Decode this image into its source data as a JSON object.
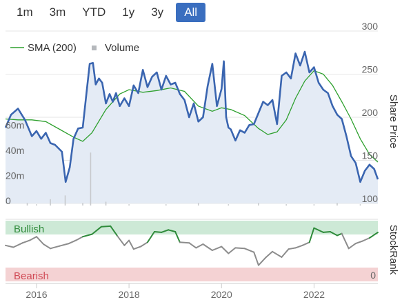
{
  "range_buttons": [
    {
      "label": "1m",
      "active": false
    },
    {
      "label": "3m",
      "active": false
    },
    {
      "label": "YTD",
      "active": false
    },
    {
      "label": "1y",
      "active": false
    },
    {
      "label": "3y",
      "active": false
    },
    {
      "label": "All",
      "active": true
    }
  ],
  "colors": {
    "price_line": "#3a65b0",
    "sma_line": "#2ea02e",
    "price_area": "#e4ebf5",
    "volume_bar": "#c7c9cc",
    "bullish_band": "#cde9d6",
    "bearish_band": "#f4d2d3",
    "stockrank_above": "#2e8b3a",
    "stockrank_below": "#8c8c8c",
    "accent_button": "#3a6ebf"
  },
  "chart_data": {
    "type": "line",
    "legend": {
      "position": "top-left",
      "items": [
        {
          "label": "SMA (200)",
          "marker": "line",
          "color": "#2ea02e"
        },
        {
          "label": "Volume",
          "marker": "square",
          "color": "#b5b8bc"
        }
      ]
    },
    "x_axis": {
      "range": [
        2015.33,
        2023.38
      ],
      "ticks": [
        {
          "value": 2016.0,
          "label": "2016"
        },
        {
          "value": 2018.0,
          "label": "2018"
        },
        {
          "value": 2020.0,
          "label": "2020"
        },
        {
          "value": 2022.0,
          "label": "2022"
        }
      ]
    },
    "price_axis": {
      "title": "Share Price",
      "range": [
        100,
        300
      ],
      "ticks": [
        100,
        150,
        200,
        250,
        300
      ]
    },
    "volume_axis": {
      "range": [
        0,
        70
      ],
      "ticks": [
        {
          "value": 0,
          "label": "0"
        },
        {
          "value": 20,
          "label": "20m"
        },
        {
          "value": 40,
          "label": "40m"
        },
        {
          "value": 60,
          "label": "60m"
        }
      ]
    },
    "stockrank_axis": {
      "title": "StockRank",
      "range": [
        0,
        100
      ],
      "ticks": [
        {
          "value": 0,
          "label": "0"
        }
      ],
      "bullish_label": "Bullish",
      "bearish_label": "Bearish",
      "bullish_threshold": 70,
      "bearish_threshold": 30
    },
    "series": [
      {
        "name": "Share Price",
        "x": [
          2015.33,
          2015.45,
          2015.6,
          2015.75,
          2015.9,
          2016.0,
          2016.1,
          2016.2,
          2016.3,
          2016.4,
          2016.55,
          2016.63,
          2016.72,
          2016.8,
          2016.9,
          2017.0,
          2017.08,
          2017.15,
          2017.22,
          2017.28,
          2017.35,
          2017.42,
          2017.5,
          2017.58,
          2017.65,
          2017.72,
          2017.8,
          2017.9,
          2018.0,
          2018.1,
          2018.2,
          2018.3,
          2018.4,
          2018.5,
          2018.6,
          2018.7,
          2018.8,
          2018.9,
          2019.0,
          2019.1,
          2019.2,
          2019.3,
          2019.4,
          2019.5,
          2019.6,
          2019.7,
          2019.8,
          2019.9,
          2020.0,
          2020.05,
          2020.1,
          2020.15,
          2020.2,
          2020.3,
          2020.4,
          2020.5,
          2020.6,
          2020.7,
          2020.8,
          2020.9,
          2021.0,
          2021.1,
          2021.2,
          2021.3,
          2021.4,
          2021.5,
          2021.6,
          2021.7,
          2021.8,
          2021.9,
          2022.0,
          2022.1,
          2022.2,
          2022.3,
          2022.4,
          2022.5,
          2022.6,
          2022.7,
          2022.8,
          2022.9,
          2023.0,
          2023.1,
          2023.2,
          2023.3,
          2023.38
        ],
        "values": [
          188,
          203,
          210,
          197,
          178,
          184,
          175,
          182,
          170,
          168,
          160,
          125,
          142,
          175,
          187,
          188,
          228,
          262,
          263,
          238,
          245,
          240,
          216,
          227,
          218,
          228,
          213,
          222,
          213,
          237,
          228,
          255,
          235,
          247,
          252,
          232,
          248,
          238,
          240,
          227,
          220,
          200,
          216,
          195,
          200,
          236,
          262,
          213,
          233,
          265,
          200,
          188,
          186,
          173,
          185,
          182,
          191,
          192,
          205,
          218,
          214,
          220,
          192,
          248,
          252,
          245,
          274,
          260,
          276,
          252,
          258,
          240,
          232,
          228,
          213,
          203,
          198,
          178,
          155,
          147,
          125,
          138,
          145,
          140,
          128
        ]
      },
      {
        "name": "SMA (200)",
        "x": [
          2015.33,
          2015.6,
          2015.9,
          2016.2,
          2016.5,
          2016.8,
          2017.0,
          2017.2,
          2017.5,
          2017.8,
          2018.0,
          2018.3,
          2018.6,
          2018.9,
          2019.2,
          2019.5,
          2019.8,
          2020.0,
          2020.2,
          2020.5,
          2020.8,
          2021.0,
          2021.2,
          2021.4,
          2021.6,
          2021.8,
          2022.0,
          2022.2,
          2022.4,
          2022.6,
          2022.8,
          2023.0,
          2023.2,
          2023.38
        ],
        "values": [
          198,
          197,
          197,
          195,
          186,
          177,
          172,
          182,
          209,
          227,
          232,
          229,
          231,
          234,
          230,
          213,
          207,
          211,
          209,
          202,
          187,
          180,
          183,
          197,
          222,
          242,
          254,
          250,
          237,
          218,
          198,
          175,
          157,
          148
        ]
      },
      {
        "name": "Volume",
        "x": [
          2015.8,
          2016.0,
          2016.3,
          2016.62,
          2017.0,
          2017.17,
          2017.5,
          2018.0,
          2018.8,
          2019.5,
          2020.15,
          2020.8,
          2021.4,
          2022.0,
          2022.5,
          2023.0
        ],
        "values": [
          2,
          1,
          5,
          8,
          2,
          42,
          3,
          1,
          1,
          2,
          1,
          2,
          1,
          1,
          2,
          1
        ]
      },
      {
        "name": "StockRank",
        "x": [
          2015.33,
          2015.5,
          2015.7,
          2015.85,
          2016.0,
          2016.15,
          2016.3,
          2016.5,
          2016.7,
          2016.85,
          2017.0,
          2017.2,
          2017.4,
          2017.6,
          2017.75,
          2017.9,
          2018.0,
          2018.1,
          2018.25,
          2018.4,
          2018.55,
          2018.7,
          2018.85,
          2019.0,
          2019.1,
          2019.3,
          2019.45,
          2019.6,
          2019.8,
          2020.0,
          2020.15,
          2020.3,
          2020.5,
          2020.7,
          2020.8,
          2020.95,
          2021.1,
          2021.3,
          2021.45,
          2021.6,
          2021.75,
          2021.9,
          2022.0,
          2022.2,
          2022.35,
          2022.5,
          2022.6,
          2022.75,
          2022.9,
          2023.05,
          2023.2,
          2023.38
        ],
        "values": [
          58,
          55,
          62,
          66,
          72,
          60,
          53,
          57,
          61,
          66,
          72,
          76,
          88,
          89,
          73,
          58,
          66,
          52,
          56,
          63,
          80,
          79,
          83,
          80,
          63,
          62,
          54,
          60,
          50,
          56,
          45,
          54,
          53,
          47,
          26,
          38,
          48,
          39,
          52,
          54,
          58,
          63,
          86,
          79,
          80,
          74,
          77,
          53,
          61,
          65,
          70,
          79
        ]
      }
    ]
  }
}
